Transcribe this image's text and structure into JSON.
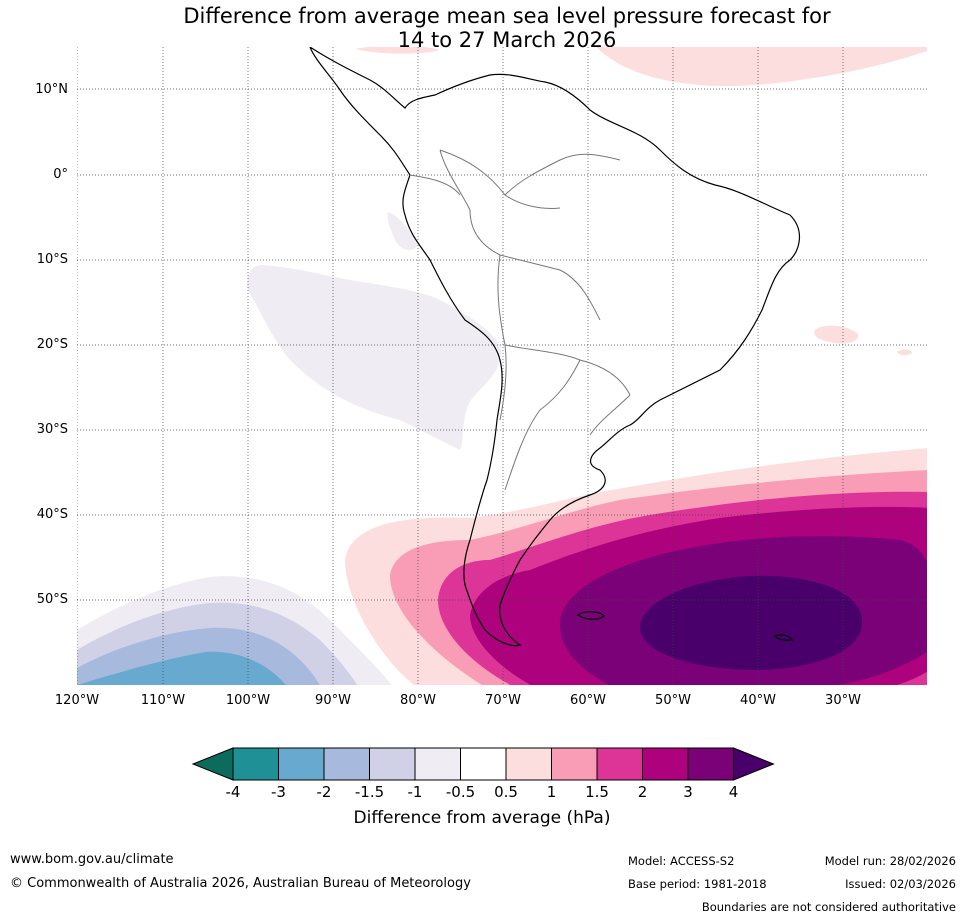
{
  "title": {
    "line1": "Difference from average mean sea level pressure forecast for",
    "line2": "14 to 27 March 2026"
  },
  "map": {
    "lat_labels": [
      "10°N",
      "0°",
      "10°S",
      "20°S",
      "30°S",
      "40°S",
      "50°S"
    ],
    "lon_labels": [
      "120°W",
      "110°W",
      "100°W",
      "90°W",
      "80°W",
      "70°W",
      "60°W",
      "50°W",
      "40°W",
      "30°W"
    ]
  },
  "colorbar": {
    "colors": [
      "#0d6b5e",
      "#1f9196",
      "#67a9cf",
      "#a7b9dc",
      "#d0d1e6",
      "#efecf3",
      "#ffffff",
      "#fddede",
      "#f99db6",
      "#dd3497",
      "#ae017e",
      "#7a0177",
      "#49006a"
    ],
    "tick_labels": [
      "-4",
      "-3",
      "-2",
      "-1.5",
      "-1",
      "-0.5",
      "0.5",
      "1",
      "1.5",
      "2",
      "3",
      "4"
    ],
    "label": "Difference from average (hPa)"
  },
  "footer": {
    "url": "www.bom.gov.au/climate",
    "copyright": "© Commonwealth of Australia 2026, Australian Bureau of Meteorology",
    "model": "Model: ACCESS-S2",
    "base_period": "Base period: 1981-2018",
    "model_run": "Model run: 28/02/2026",
    "issued": "Issued: 02/03/2026",
    "disclaimer": "Boundaries are not considered authoritative"
  }
}
